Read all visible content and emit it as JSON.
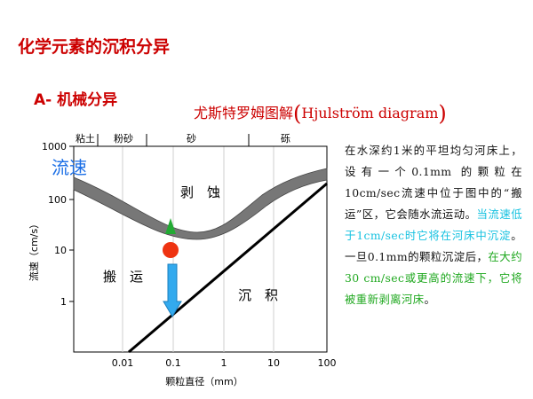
{
  "title": "化学元素的沉积分异",
  "section": "A- 机械分异",
  "diagram_title": {
    "main": "尤斯特罗姆图解",
    "open": "(",
    "latin": "Hjulström diagram",
    "close": ")"
  },
  "diagram": {
    "y_axis_label": "流速（cm/s）",
    "x_axis_label": "颗粒直径（mm）",
    "y_ticks": [
      "1000",
      "100",
      "10",
      "1"
    ],
    "x_ticks": [
      "0.01",
      "0.1",
      "1",
      "10",
      "100"
    ],
    "top_labels": [
      "粘土",
      "粉砂",
      "砂",
      "砾"
    ],
    "overlay_label": "流速",
    "region_labels": {
      "erosion": "剥　蚀",
      "transport": "搬　运",
      "deposition": "沉　积"
    },
    "colors": {
      "erosion_band": "#777777",
      "deposition_line": "#000000",
      "green_marker": "#22aa33",
      "red_marker": "#ee3311",
      "blue_arrow": "#33aaee",
      "overlay_label": "#1a6ee6"
    },
    "marked_particle_diameter_mm": 0.1,
    "marked_velocity_cm_s": 10
  },
  "description": {
    "part1": "在水深约1米的平坦均匀河床上，设有一个0.1mm 的颗粒在10cm/sec流速中位于图中的“搬运”区，它会随水流运动。",
    "part2": "当流速低于1cm/sec时它将在河床中沉淀",
    "part3": "。一旦0.1mm的颗粒沉淀后，",
    "part4": "在大约30 cm/sec或更高的流速下，它将被重新剥离河床",
    "part5": "。"
  }
}
